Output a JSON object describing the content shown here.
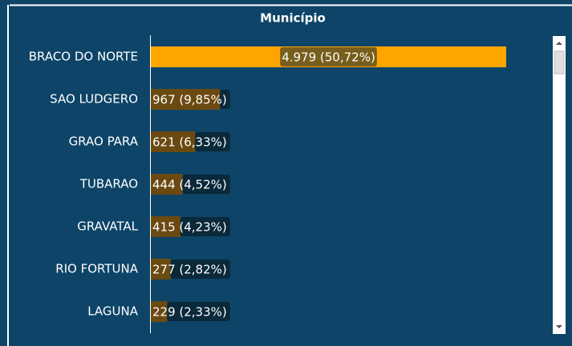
{
  "chart_data": {
    "type": "bar",
    "orientation": "horizontal",
    "title": "Município",
    "categories": [
      "BRACO DO NORTE",
      "SAO LUDGERO",
      "GRAO PARA",
      "TUBARAO",
      "GRAVATAL",
      "RIO FORTUNA",
      "LAGUNA"
    ],
    "values": [
      4979,
      967,
      621,
      444,
      415,
      277,
      229
    ],
    "value_labels": [
      "4.979 (50,72%)",
      "967 (9,85%)",
      "621 (6,33%)",
      "444 (4,52%)",
      "415 (4,23%)",
      "277 (2,82%)",
      "229 (2,33%)"
    ],
    "colors": [
      "#ffa500",
      "#6b4a12",
      "#6b4a12",
      "#6b4a12",
      "#6b4a12",
      "#6b4a12",
      "#6b4a12"
    ]
  }
}
